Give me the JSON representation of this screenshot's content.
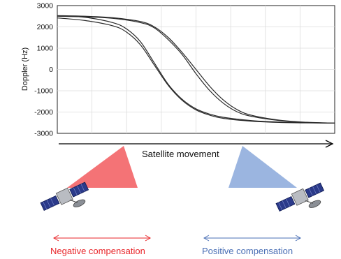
{
  "chart_data": {
    "type": "line",
    "ylabel": "Doppler (Hz)",
    "xlabel": "",
    "title": "",
    "ylim": [
      -3000,
      3000
    ],
    "yticks": [
      3000,
      2000,
      1000,
      0,
      -1000,
      -2000,
      -3000
    ],
    "xlim": [
      0,
      10
    ],
    "grid": true,
    "series": [
      {
        "x": [
          0,
          1,
          2,
          2.5,
          3,
          3.5,
          4,
          4.5,
          5,
          5.5,
          6,
          7,
          8,
          9,
          10
        ],
        "values": [
          2520,
          2450,
          2200,
          1900,
          1300,
          300,
          -700,
          -1400,
          -1850,
          -2100,
          -2250,
          -2400,
          -2470,
          -2500,
          -2520
        ]
      },
      {
        "x": [
          0,
          1,
          2,
          2.5,
          3,
          3.5,
          4,
          4.5,
          5,
          5.5,
          6,
          7,
          8,
          9,
          10
        ],
        "values": [
          2420,
          2300,
          2050,
          1750,
          1150,
          200,
          -750,
          -1450,
          -1900,
          -2150,
          -2300,
          -2430,
          -2490,
          -2510,
          -2520
        ]
      },
      {
        "x": [
          0,
          1,
          2,
          3,
          3.5,
          4,
          4.5,
          5,
          5.5,
          6,
          6.5,
          7,
          8,
          9,
          10
        ],
        "values": [
          2530,
          2500,
          2430,
          2250,
          2000,
          1500,
          800,
          0,
          -800,
          -1450,
          -1900,
          -2150,
          -2380,
          -2480,
          -2520
        ]
      },
      {
        "x": [
          0,
          1,
          2,
          3,
          3.5,
          4,
          4.5,
          5,
          5.5,
          6,
          6.5,
          7,
          8,
          9,
          10
        ],
        "values": [
          2500,
          2470,
          2400,
          2200,
          1950,
          1400,
          700,
          -200,
          -1000,
          -1600,
          -2000,
          -2200,
          -2400,
          -2490,
          -2520
        ]
      }
    ]
  },
  "movement_label": "Satellite movement",
  "negative_label": "Negative compensation",
  "positive_label": "Positive compensation",
  "colors": {
    "negative": "#e8262a",
    "positive": "#4a6fb5",
    "negative_beam": "#f25a5e",
    "positive_beam": "#8aa8db"
  }
}
